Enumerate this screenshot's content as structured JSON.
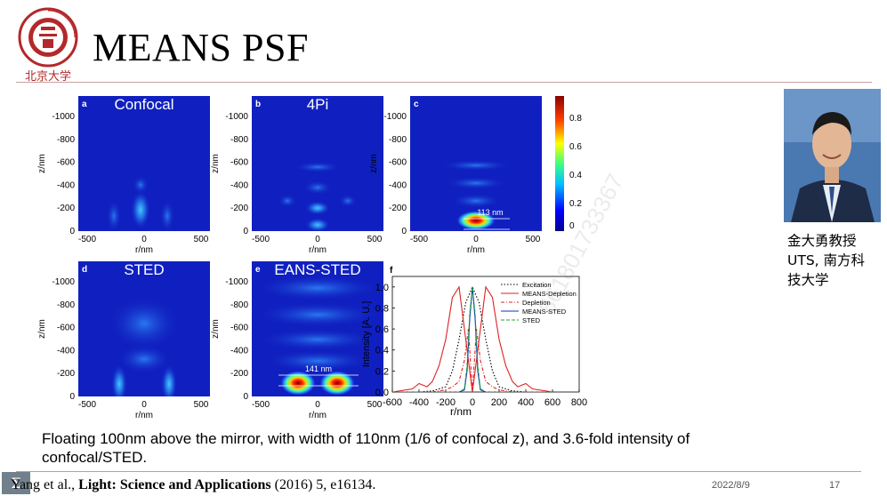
{
  "header": {
    "title": "MEANS PSF",
    "logo_text_top": "PEKING UNIVERSITY",
    "logo_year": "1898",
    "logo_name": "北京大学"
  },
  "panels": [
    {
      "letter": "a",
      "title": "Confocal",
      "ylabel": "z/nm",
      "xlabel": "r/nm",
      "yticks": [
        "-1000",
        "-800",
        "-600",
        "-400",
        "-200",
        "0"
      ],
      "xticks": [
        "-500",
        "0",
        "500"
      ]
    },
    {
      "letter": "b",
      "title": "4Pi",
      "ylabel": "z/nm",
      "xlabel": "r/nm",
      "yticks": [
        "-1000",
        "-800",
        "-600",
        "-400",
        "-200",
        "0"
      ],
      "xticks": [
        "-500",
        "0",
        "500"
      ]
    },
    {
      "letter": "c",
      "title": "",
      "ylabel": "z/nm",
      "xlabel": "r/nm",
      "yticks": [
        "-1000",
        "-800",
        "-600",
        "-400",
        "-200",
        "0"
      ],
      "xticks": [
        "-500",
        "0",
        "500"
      ],
      "annotation": "113 nm"
    },
    {
      "letter": "d",
      "title": "STED",
      "ylabel": "z/nm",
      "xlabel": "r/nm",
      "yticks": [
        "-1000",
        "-800",
        "-600",
        "-400",
        "-200",
        "0"
      ],
      "xticks": [
        "-500",
        "0",
        "500"
      ]
    },
    {
      "letter": "e",
      "title": "EANS-STED",
      "ylabel": "z/nm",
      "xlabel": "r/nm",
      "yticks": [
        "-1000",
        "-800",
        "-600",
        "-400",
        "-200",
        "0"
      ],
      "xticks": [
        "-500",
        "0",
        "500"
      ],
      "annotation": "141 nm"
    }
  ],
  "colorbar": {
    "ticks": [
      "0.8",
      "0.6",
      "0.4",
      "0.2",
      "0"
    ]
  },
  "chart_data": {
    "type": "line",
    "panel_letter": "f",
    "xlabel": "r/nm",
    "ylabel": "Intensity [A. U.]",
    "xlim": [
      -600,
      800
    ],
    "ylim": [
      0,
      1.1
    ],
    "xticks": [
      "-600",
      "-400",
      "-200",
      "0",
      "200",
      "400",
      "600",
      "800"
    ],
    "yticks": [
      "0.0",
      "0.2",
      "0.4",
      "0.6",
      "0.8",
      "1.0"
    ],
    "legend_position": "top-right",
    "series": [
      {
        "name": "Excitation",
        "color": "#000000",
        "style": "dotted",
        "x": [
          -600,
          -400,
          -300,
          -200,
          -150,
          -100,
          -50,
          0,
          50,
          100,
          150,
          200,
          300,
          400,
          600
        ],
        "y": [
          0.0,
          0.0,
          0.01,
          0.05,
          0.2,
          0.5,
          0.85,
          1.0,
          0.85,
          0.5,
          0.2,
          0.05,
          0.01,
          0.0,
          0.0
        ]
      },
      {
        "name": "MEANS-Depletion",
        "color": "#e02020",
        "style": "solid",
        "x": [
          -600,
          -450,
          -400,
          -340,
          -300,
          -250,
          -200,
          -150,
          -100,
          -50,
          0,
          50,
          100,
          150,
          200,
          250,
          300,
          340,
          400,
          450,
          600
        ],
        "y": [
          0.0,
          0.03,
          0.08,
          0.05,
          0.1,
          0.25,
          0.5,
          0.9,
          1.0,
          0.5,
          0.0,
          0.5,
          1.0,
          0.9,
          0.5,
          0.25,
          0.1,
          0.05,
          0.08,
          0.03,
          0.0
        ]
      },
      {
        "name": "Depletion",
        "color": "#e02020",
        "style": "dashdot",
        "x": [
          -600,
          -300,
          -200,
          -150,
          -100,
          -60,
          -30,
          0,
          30,
          60,
          100,
          150,
          200,
          300,
          600
        ],
        "y": [
          0.0,
          0.0,
          0.02,
          0.05,
          0.1,
          0.3,
          0.6,
          0.0,
          0.6,
          0.3,
          0.1,
          0.05,
          0.02,
          0.0,
          0.0
        ]
      },
      {
        "name": "MEANS-STED",
        "color": "#1030c0",
        "style": "solid",
        "x": [
          -600,
          -100,
          -60,
          -40,
          -20,
          0,
          20,
          40,
          60,
          100,
          600
        ],
        "y": [
          0.0,
          0.0,
          0.02,
          0.2,
          0.7,
          1.0,
          0.7,
          0.2,
          0.02,
          0.0,
          0.0
        ]
      },
      {
        "name": "STED",
        "color": "#20a040",
        "style": "dashed",
        "x": [
          -600,
          -100,
          -60,
          -40,
          -20,
          0,
          20,
          40,
          60,
          100,
          600
        ],
        "y": [
          0.0,
          0.0,
          0.03,
          0.25,
          0.75,
          1.0,
          0.75,
          0.25,
          0.03,
          0.0,
          0.0
        ]
      }
    ]
  },
  "speaker": {
    "caption_line1": "金大勇教授",
    "caption_line2": "UTS, 南方科",
    "caption_line3": "技大学"
  },
  "description": "Floating 100nm above the mirror, with width of 110nm (1/6 of confocal z), and 3.6-fold intensity of confocal/STED.",
  "citation": {
    "authors": "Yang et al.,",
    "journal": "Light: Science and Applications",
    "details": "(2016) 5, e16134."
  },
  "footer": {
    "date": "2022/8/9",
    "page": "17",
    "sigma": "Σ"
  },
  "watermark": "861801733367"
}
